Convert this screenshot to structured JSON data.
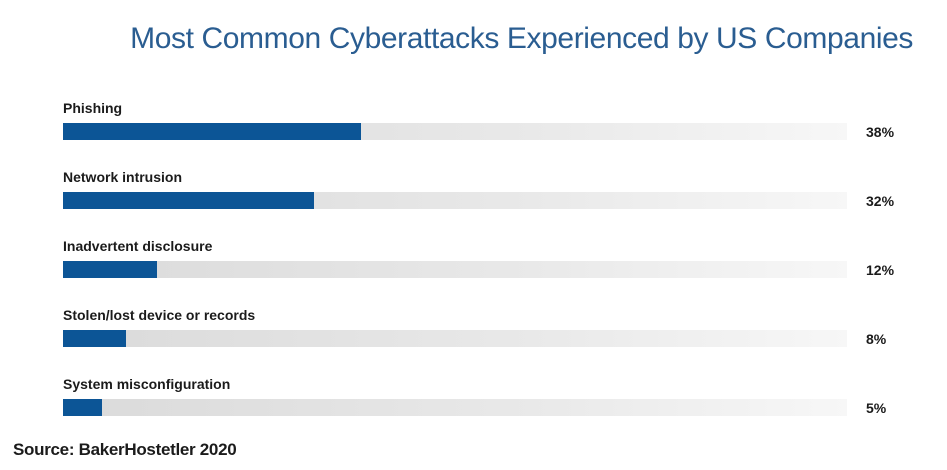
{
  "chart_data": {
    "type": "bar",
    "orientation": "horizontal",
    "title": "Most Common Cyberattacks Experienced by US Companies",
    "categories": [
      "Phishing",
      "Network intrusion",
      "Inadvertent disclosure",
      "Stolen/lost device or records",
      "System misconfiguration"
    ],
    "values": [
      38,
      32,
      12,
      8,
      5
    ],
    "value_labels": [
      "38%",
      "32%",
      "12%",
      "8%",
      "5%"
    ],
    "unit": "%",
    "xlim": [
      0,
      100
    ],
    "grid": false,
    "legend": "none",
    "bar_color": "#0c5596",
    "track_color": "#e2e2e2",
    "title_color": "#2a5d91"
  },
  "source": "Source: BakerHostetler 2020"
}
